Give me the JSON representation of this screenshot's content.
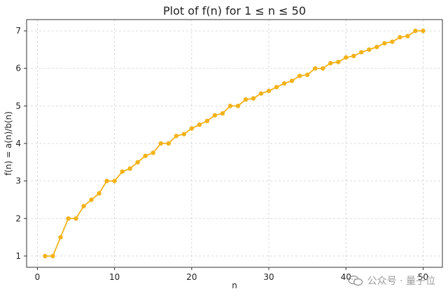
{
  "chart_data": {
    "type": "line",
    "title": "Plot of f(n) for 1 ≤ n ≤ 50",
    "xlabel": "n",
    "ylabel": "f(n) = a(n)/b(n)",
    "xlim": [
      -1.4,
      52.5
    ],
    "ylim": [
      0.7,
      7.3
    ],
    "xticks": [
      0,
      10,
      20,
      30,
      40,
      50
    ],
    "yticks": [
      1,
      2,
      3,
      4,
      5,
      6,
      7
    ],
    "grid": true,
    "line_color": "#F2B21A",
    "series": [
      {
        "x": [
          1,
          2,
          3,
          4,
          5,
          6,
          7,
          8,
          9,
          10,
          11,
          12,
          13,
          14,
          15,
          16,
          17,
          18,
          19,
          20,
          21,
          22,
          23,
          24,
          25,
          26,
          27,
          28,
          29,
          30,
          31,
          32,
          33,
          34,
          35,
          36,
          37,
          38,
          39,
          40,
          41,
          42,
          43,
          44,
          45,
          46,
          47,
          48,
          49,
          50
        ],
        "values": [
          1.0,
          1.0,
          1.5,
          2.0,
          2.0,
          2.33,
          2.5,
          2.67,
          3.0,
          3.0,
          3.25,
          3.33,
          3.5,
          3.67,
          3.75,
          4.0,
          4.0,
          4.2,
          4.25,
          4.4,
          4.5,
          4.6,
          4.75,
          4.8,
          5.0,
          5.0,
          5.17,
          5.2,
          5.33,
          5.4,
          5.5,
          5.6,
          5.67,
          5.8,
          5.83,
          6.0,
          6.0,
          6.14,
          6.17,
          6.29,
          6.33,
          6.43,
          6.5,
          6.57,
          6.67,
          6.71,
          6.83,
          6.86,
          7.0,
          7.0
        ]
      }
    ]
  },
  "watermark": {
    "icon": "wechat-icon",
    "text": "公众号 · 量子位"
  }
}
